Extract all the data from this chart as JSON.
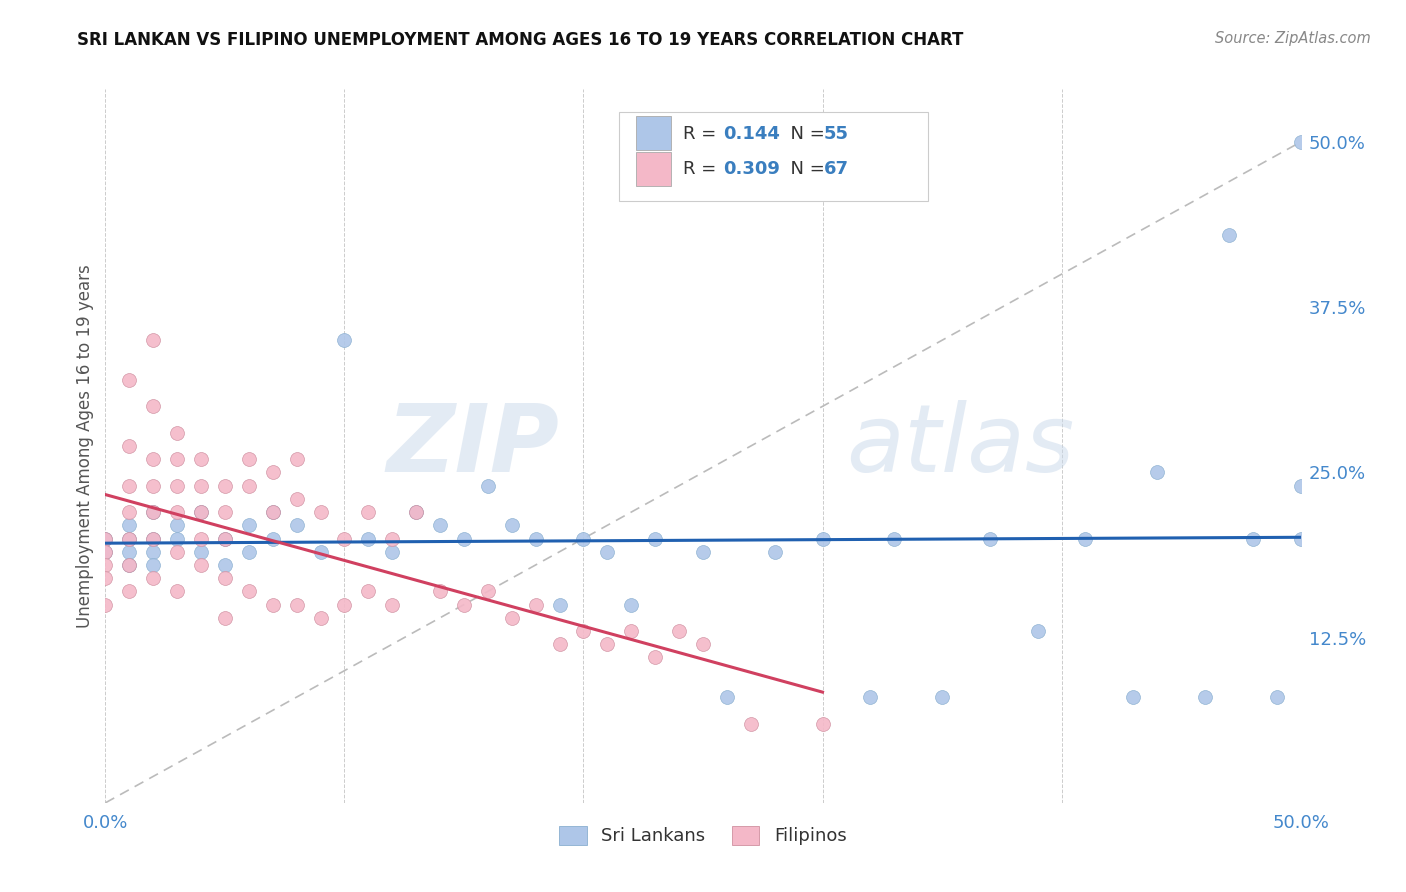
{
  "title": "SRI LANKAN VS FILIPINO UNEMPLOYMENT AMONG AGES 16 TO 19 YEARS CORRELATION CHART",
  "source": "Source: ZipAtlas.com",
  "ylabel": "Unemployment Among Ages 16 to 19 years",
  "xlim": [
    0.0,
    0.5
  ],
  "ylim": [
    0.0,
    0.54
  ],
  "ytick_labels_right": [
    "50.0%",
    "37.5%",
    "25.0%",
    "12.5%"
  ],
  "ytick_vals_right": [
    0.5,
    0.375,
    0.25,
    0.125
  ],
  "watermark_part1": "ZIP",
  "watermark_part2": "atlas",
  "sri_lankan_color": "#aec6e8",
  "filipino_color": "#f4b8c8",
  "sri_lankan_R": 0.144,
  "sri_lankan_N": 55,
  "filipino_R": 0.309,
  "filipino_N": 67,
  "sri_lankan_line_color": "#2060b0",
  "filipino_line_color": "#d04060",
  "diagonal_line_color": "#bbbbbb",
  "sri_lankans_x": [
    0.0,
    0.0,
    0.01,
    0.01,
    0.01,
    0.01,
    0.02,
    0.02,
    0.02,
    0.02,
    0.03,
    0.03,
    0.04,
    0.04,
    0.05,
    0.05,
    0.06,
    0.06,
    0.07,
    0.07,
    0.08,
    0.09,
    0.1,
    0.11,
    0.12,
    0.13,
    0.14,
    0.15,
    0.16,
    0.17,
    0.18,
    0.19,
    0.2,
    0.21,
    0.22,
    0.23,
    0.25,
    0.26,
    0.28,
    0.3,
    0.32,
    0.33,
    0.35,
    0.37,
    0.39,
    0.41,
    0.43,
    0.44,
    0.46,
    0.47,
    0.48,
    0.49,
    0.5,
    0.5,
    0.5
  ],
  "sri_lankans_y": [
    0.2,
    0.19,
    0.21,
    0.2,
    0.19,
    0.18,
    0.22,
    0.2,
    0.19,
    0.18,
    0.21,
    0.2,
    0.22,
    0.19,
    0.2,
    0.18,
    0.21,
    0.19,
    0.22,
    0.2,
    0.21,
    0.19,
    0.35,
    0.2,
    0.19,
    0.22,
    0.21,
    0.2,
    0.24,
    0.21,
    0.2,
    0.15,
    0.2,
    0.19,
    0.15,
    0.2,
    0.19,
    0.08,
    0.19,
    0.2,
    0.08,
    0.2,
    0.08,
    0.2,
    0.13,
    0.2,
    0.08,
    0.25,
    0.08,
    0.43,
    0.2,
    0.08,
    0.2,
    0.24,
    0.5
  ],
  "filipinos_x": [
    0.0,
    0.0,
    0.0,
    0.0,
    0.0,
    0.01,
    0.01,
    0.01,
    0.01,
    0.01,
    0.01,
    0.01,
    0.02,
    0.02,
    0.02,
    0.02,
    0.02,
    0.02,
    0.02,
    0.03,
    0.03,
    0.03,
    0.03,
    0.03,
    0.03,
    0.04,
    0.04,
    0.04,
    0.04,
    0.04,
    0.05,
    0.05,
    0.05,
    0.05,
    0.05,
    0.06,
    0.06,
    0.06,
    0.07,
    0.07,
    0.07,
    0.08,
    0.08,
    0.08,
    0.09,
    0.09,
    0.1,
    0.1,
    0.11,
    0.11,
    0.12,
    0.12,
    0.13,
    0.14,
    0.15,
    0.16,
    0.17,
    0.18,
    0.19,
    0.2,
    0.21,
    0.22,
    0.23,
    0.24,
    0.25,
    0.27,
    0.3
  ],
  "filipinos_y": [
    0.2,
    0.19,
    0.18,
    0.17,
    0.15,
    0.32,
    0.27,
    0.24,
    0.22,
    0.2,
    0.18,
    0.16,
    0.35,
    0.3,
    0.26,
    0.24,
    0.22,
    0.2,
    0.17,
    0.28,
    0.26,
    0.24,
    0.22,
    0.19,
    0.16,
    0.26,
    0.24,
    0.22,
    0.2,
    0.18,
    0.24,
    0.22,
    0.2,
    0.17,
    0.14,
    0.26,
    0.24,
    0.16,
    0.25,
    0.22,
    0.15,
    0.26,
    0.23,
    0.15,
    0.22,
    0.14,
    0.2,
    0.15,
    0.22,
    0.16,
    0.2,
    0.15,
    0.22,
    0.16,
    0.15,
    0.16,
    0.14,
    0.15,
    0.12,
    0.13,
    0.12,
    0.13,
    0.11,
    0.13,
    0.12,
    0.06,
    0.06
  ]
}
